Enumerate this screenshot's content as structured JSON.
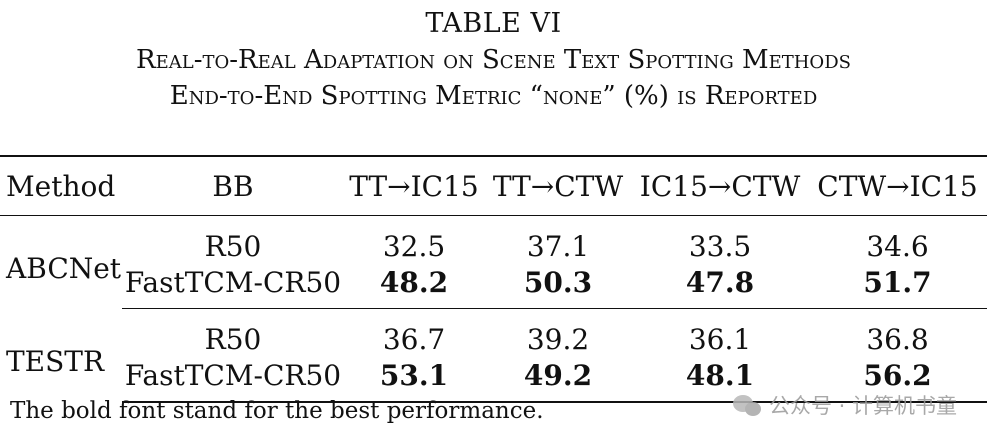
{
  "table": {
    "label": "TABLE VI",
    "title_line1": "Real-to-Real Adaptation on Scene Text Spotting Methods",
    "title_line2": "End-to-End Spotting Metric “none” (%) is Reported",
    "headers": [
      "Method",
      "BB",
      "TT→IC15",
      "TT→CTW",
      "IC15→CTW",
      "CTW→IC15"
    ],
    "groups": [
      {
        "method": "ABCNet",
        "rows": [
          {
            "bb": "R50",
            "values": [
              "32.5",
              "37.1",
              "33.5",
              "34.6"
            ]
          },
          {
            "bb": "FastTCM-CR50",
            "values": [
              "48.2",
              "50.3",
              "47.8",
              "51.7"
            ]
          }
        ]
      },
      {
        "method": "TESTR",
        "rows": [
          {
            "bb": "R50",
            "values": [
              "36.7",
              "39.2",
              "36.1",
              "36.8"
            ]
          },
          {
            "bb": "FastTCM-CR50",
            "values": [
              "53.1",
              "49.2",
              "48.1",
              "56.2"
            ]
          }
        ]
      }
    ],
    "note": "The bold font stand for the best performance."
  },
  "watermark": {
    "text": "公众号 · 计算机书童",
    "icon": "wechat-icon"
  }
}
